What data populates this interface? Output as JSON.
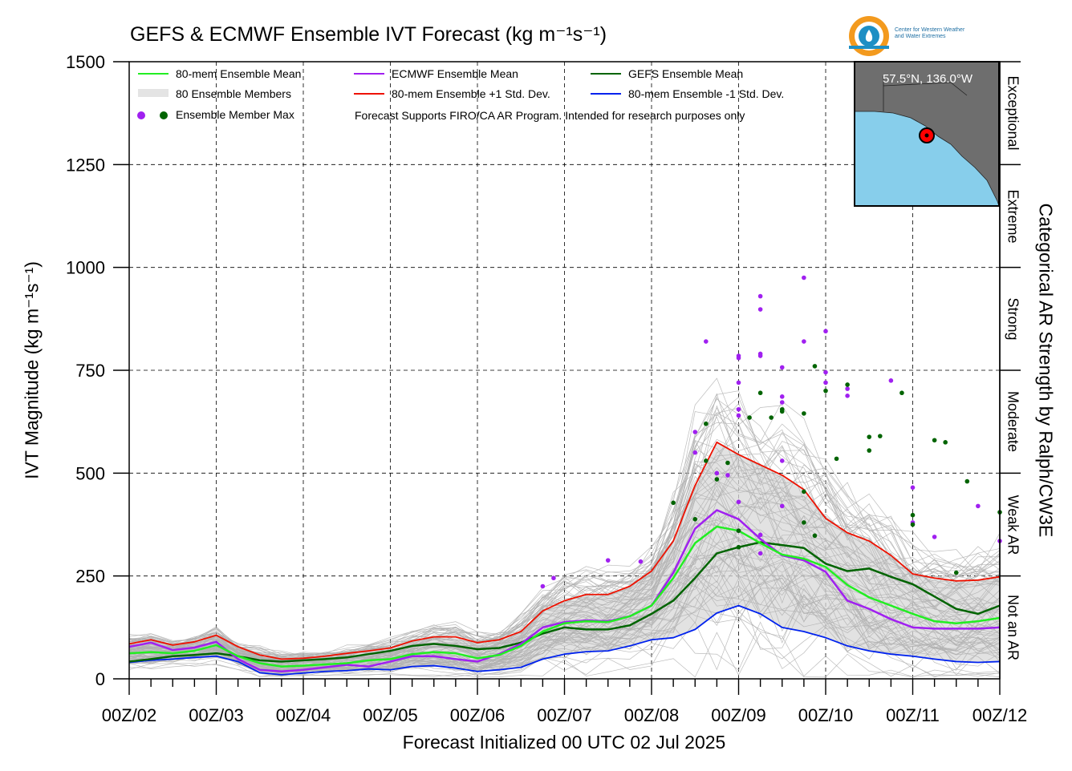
{
  "title": "GEFS & ECMWF Ensemble IVT Forecast (kg m⁻¹s⁻¹)",
  "logo": {
    "line1": "Center for Western Weather",
    "line2": "and Water Extremes",
    "colors": [
      "#f39a1e",
      "#1e8fc4"
    ]
  },
  "inset": {
    "location_label": "57.5°N, 136.0°W",
    "land_color": "#6e6e6e",
    "ocean_color": "#87ceeb",
    "marker_color": "#ff0000"
  },
  "note": "Forecast Supports FIRO/CA AR Program. Intended for research purposes only",
  "xlabel": "Forecast Initialized 00 UTC 02 Jul 2025",
  "ylabel": "IVT Magnitude (kg m⁻¹s⁻¹)",
  "right_label": "Categorical AR Strength by Ralph/CW3E",
  "categories": [
    {
      "label": "Not an AR",
      "range": [
        0,
        250
      ]
    },
    {
      "label": "Weak AR",
      "range": [
        250,
        500
      ]
    },
    {
      "label": "Moderate",
      "range": [
        500,
        750
      ]
    },
    {
      "label": "Strong",
      "range": [
        750,
        1000
      ]
    },
    {
      "label": "Extreme",
      "range": [
        1000,
        1250
      ]
    },
    {
      "label": "Exceptional",
      "range": [
        1250,
        1500
      ]
    }
  ],
  "chart_data": {
    "type": "line",
    "xlim": [
      0,
      240
    ],
    "ylim": [
      0,
      1500
    ],
    "x_unit": "forecast hour",
    "x_ticks": [
      {
        "x": 0,
        "label": "00Z/02"
      },
      {
        "x": 24,
        "label": "00Z/03"
      },
      {
        "x": 48,
        "label": "00Z/04"
      },
      {
        "x": 72,
        "label": "00Z/05"
      },
      {
        "x": 96,
        "label": "00Z/06"
      },
      {
        "x": 120,
        "label": "00Z/07"
      },
      {
        "x": 144,
        "label": "00Z/08"
      },
      {
        "x": 168,
        "label": "00Z/09"
      },
      {
        "x": 192,
        "label": "00Z/10"
      },
      {
        "x": 216,
        "label": "00Z/11"
      },
      {
        "x": 240,
        "label": "00Z/12"
      }
    ],
    "y_ticks": [
      0,
      250,
      500,
      750,
      1000,
      1250,
      1500
    ],
    "grid": true,
    "legend_position": "top-left",
    "x": [
      0,
      6,
      12,
      18,
      24,
      30,
      36,
      42,
      48,
      54,
      60,
      66,
      72,
      78,
      84,
      90,
      96,
      102,
      108,
      114,
      120,
      126,
      132,
      138,
      144,
      150,
      156,
      162,
      168,
      174,
      180,
      186,
      192,
      198,
      204,
      210,
      216,
      222,
      228,
      234,
      240
    ],
    "series": [
      {
        "name": "80-mem Ensemble Mean",
        "color": "#22ee22",
        "width": 2.5,
        "values": [
          62,
          65,
          62,
          68,
          82,
          55,
          38,
          30,
          32,
          35,
          38,
          45,
          48,
          60,
          65,
          62,
          50,
          58,
          80,
          115,
          135,
          140,
          138,
          152,
          178,
          245,
          330,
          370,
          360,
          330,
          302,
          292,
          272,
          228,
          198,
          178,
          158,
          140,
          135,
          140,
          148
        ]
      },
      {
        "name": "ECMWF Ensemble Mean",
        "color": "#a020f0",
        "width": 2.5,
        "values": [
          78,
          88,
          70,
          76,
          90,
          48,
          22,
          18,
          22,
          28,
          34,
          30,
          42,
          55,
          55,
          48,
          42,
          60,
          85,
          125,
          138,
          142,
          140,
          152,
          178,
          258,
          365,
          410,
          388,
          340,
          300,
          288,
          260,
          190,
          170,
          145,
          125,
          122,
          122,
          122,
          125
        ]
      },
      {
        "name": "GEFS Ensemble Mean",
        "color": "#006400",
        "width": 2.5,
        "values": [
          42,
          48,
          55,
          58,
          62,
          55,
          45,
          42,
          45,
          48,
          52,
          60,
          68,
          80,
          85,
          80,
          72,
          75,
          88,
          110,
          125,
          120,
          120,
          130,
          158,
          190,
          245,
          305,
          320,
          332,
          325,
          318,
          280,
          262,
          268,
          248,
          230,
          200,
          170,
          158,
          178
        ]
      },
      {
        "name": "80-mem Ensemble +1 Std. Dev.",
        "color": "#ee1100",
        "width": 1.8,
        "values": [
          85,
          95,
          82,
          90,
          106,
          78,
          58,
          48,
          50,
          55,
          62,
          68,
          75,
          92,
          102,
          102,
          88,
          95,
          115,
          165,
          190,
          205,
          205,
          225,
          262,
          335,
          470,
          575,
          545,
          520,
          495,
          460,
          390,
          355,
          335,
          300,
          255,
          245,
          238,
          240,
          248
        ]
      },
      {
        "name": "80-mem Ensemble -1 Std. Dev.",
        "color": "#0022ee",
        "width": 1.8,
        "values": [
          40,
          45,
          48,
          52,
          55,
          42,
          15,
          10,
          14,
          18,
          20,
          24,
          22,
          30,
          32,
          26,
          18,
          22,
          28,
          48,
          60,
          66,
          68,
          80,
          95,
          100,
          120,
          160,
          178,
          158,
          125,
          115,
          100,
          80,
          68,
          60,
          55,
          48,
          42,
          40,
          42
        ]
      }
    ],
    "members": {
      "name": "80 Ensemble Members",
      "count": 80,
      "color": "#b0b0b0"
    },
    "member_max_points": {
      "name": "Ensemble Member Max",
      "ecmwf_color": "#a020f0",
      "gefs_color": "#006400",
      "ecmwf": [
        [
          114,
          225
        ],
        [
          117,
          245
        ],
        [
          132,
          288
        ],
        [
          141,
          285
        ],
        [
          156,
          600
        ],
        [
          156,
          550
        ],
        [
          159,
          820
        ],
        [
          162,
          500
        ],
        [
          165,
          495
        ],
        [
          168,
          780
        ],
        [
          168,
          785
        ],
        [
          168,
          720
        ],
        [
          168,
          655
        ],
        [
          168,
          640
        ],
        [
          168,
          430
        ],
        [
          168,
          360
        ],
        [
          174,
          930
        ],
        [
          174,
          898
        ],
        [
          174,
          790
        ],
        [
          174,
          785
        ],
        [
          174,
          350
        ],
        [
          174,
          305
        ],
        [
          180,
          757
        ],
        [
          180,
          686
        ],
        [
          180,
          672
        ],
        [
          180,
          530
        ],
        [
          180,
          420
        ],
        [
          186,
          975
        ],
        [
          186,
          820
        ],
        [
          192,
          845
        ],
        [
          192,
          745
        ],
        [
          192,
          720
        ],
        [
          198,
          705
        ],
        [
          198,
          688
        ],
        [
          210,
          725
        ],
        [
          216,
          465
        ],
        [
          216,
          380
        ],
        [
          222,
          345
        ],
        [
          234,
          420
        ],
        [
          240,
          335
        ]
      ],
      "gefs": [
        [
          150,
          428
        ],
        [
          156,
          388
        ],
        [
          159,
          620
        ],
        [
          159,
          530
        ],
        [
          162,
          485
        ],
        [
          165,
          525
        ],
        [
          168,
          360
        ],
        [
          168,
          320
        ],
        [
          171,
          635
        ],
        [
          174,
          695
        ],
        [
          177,
          635
        ],
        [
          180,
          655
        ],
        [
          180,
          650
        ],
        [
          186,
          645
        ],
        [
          186,
          455
        ],
        [
          186,
          380
        ],
        [
          189,
          760
        ],
        [
          189,
          348
        ],
        [
          192,
          700
        ],
        [
          195,
          535
        ],
        [
          198,
          715
        ],
        [
          204,
          588
        ],
        [
          204,
          555
        ],
        [
          207,
          590
        ],
        [
          213,
          695
        ],
        [
          216,
          398
        ],
        [
          216,
          375
        ],
        [
          222,
          580
        ],
        [
          225,
          575
        ],
        [
          228,
          258
        ],
        [
          231,
          480
        ],
        [
          240,
          405
        ]
      ]
    }
  }
}
